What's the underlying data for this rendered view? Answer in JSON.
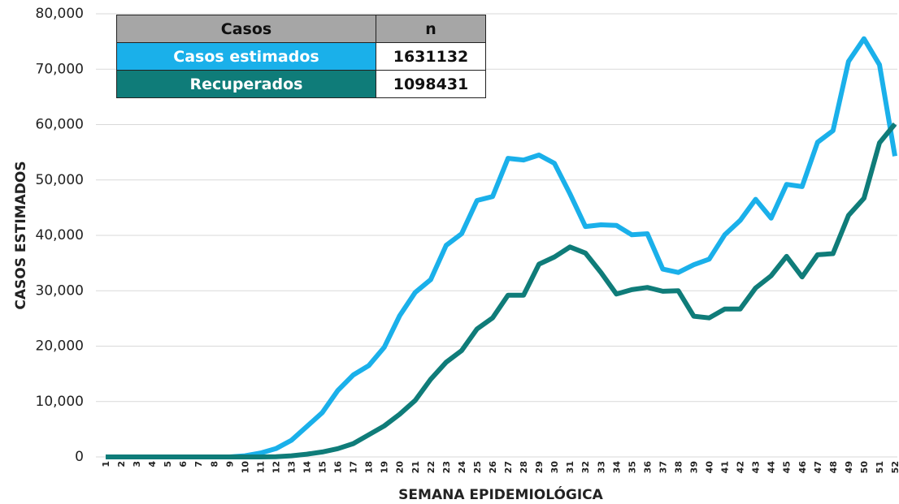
{
  "chart_data": {
    "type": "line",
    "y_label": "CASOS ESTIMADOS",
    "x_label": "SEMANA EPIDEMIOLÓGICA",
    "categories": [
      "1",
      "2",
      "3",
      "4",
      "5",
      "6",
      "7",
      "8",
      "9",
      "10",
      "11",
      "12",
      "13",
      "14",
      "15",
      "16",
      "17",
      "18",
      "19",
      "20",
      "21",
      "22",
      "23",
      "24",
      "25",
      "26",
      "27",
      "28",
      "29",
      "30",
      "31",
      "32",
      "33",
      "34",
      "35",
      "36",
      "37",
      "38",
      "39",
      "40",
      "41",
      "42",
      "43",
      "44",
      "45",
      "46",
      "47",
      "48",
      "49",
      "50",
      "51",
      "52"
    ],
    "series": [
      {
        "name": "Casos estimados",
        "color": "#1ab0ea",
        "values": [
          0,
          0,
          0,
          0,
          0,
          0,
          0,
          0,
          0,
          200,
          700,
          1500,
          3000,
          5500,
          8000,
          12000,
          14800,
          16500,
          19800,
          25500,
          29700,
          32000,
          38200,
          40300,
          46300,
          47000,
          53900,
          53600,
          54500,
          53000,
          47500,
          41600,
          41900,
          41800,
          40100,
          40300,
          33900,
          33300,
          34700,
          35700,
          40100,
          42700,
          46500,
          43100,
          49200,
          48800,
          56800,
          58900,
          71400,
          75500,
          70800,
          54300
        ]
      },
      {
        "name": "Recuperados",
        "color": "#0f7c79",
        "values": [
          0,
          0,
          0,
          0,
          0,
          0,
          0,
          0,
          0,
          0,
          0,
          50,
          200,
          500,
          900,
          1500,
          2400,
          4000,
          5600,
          7700,
          10200,
          14000,
          17100,
          19200,
          23100,
          25100,
          29200,
          29200,
          34800,
          36100,
          37900,
          36800,
          33300,
          29400,
          30200,
          30600,
          29900,
          30000,
          25400,
          25100,
          26700,
          26700,
          30500,
          32700,
          36200,
          32500,
          36500,
          36700,
          43600,
          46700,
          56700,
          60100
        ]
      }
    ],
    "ylim": [
      0,
      80000
    ],
    "yticks": [
      0,
      {
        "value": 10000,
        "label": "10,000"
      },
      {
        "value": 20000,
        "label": "20,000"
      },
      {
        "value": 30000,
        "label": "30,000"
      },
      {
        "value": 40000,
        "label": "40,000"
      },
      {
        "value": 50000,
        "label": "50,000"
      },
      {
        "value": 60000,
        "label": "60,000"
      },
      {
        "value": 70000,
        "label": "70,000"
      },
      {
        "value": 80000,
        "label": "80,000"
      }
    ],
    "grid": true,
    "table": {
      "header": [
        "Casos",
        "n"
      ],
      "header_color": "#a6a6a6",
      "rows": [
        [
          "Casos estimados",
          1631132
        ],
        [
          "Recuperados",
          1098431
        ]
      ]
    }
  }
}
